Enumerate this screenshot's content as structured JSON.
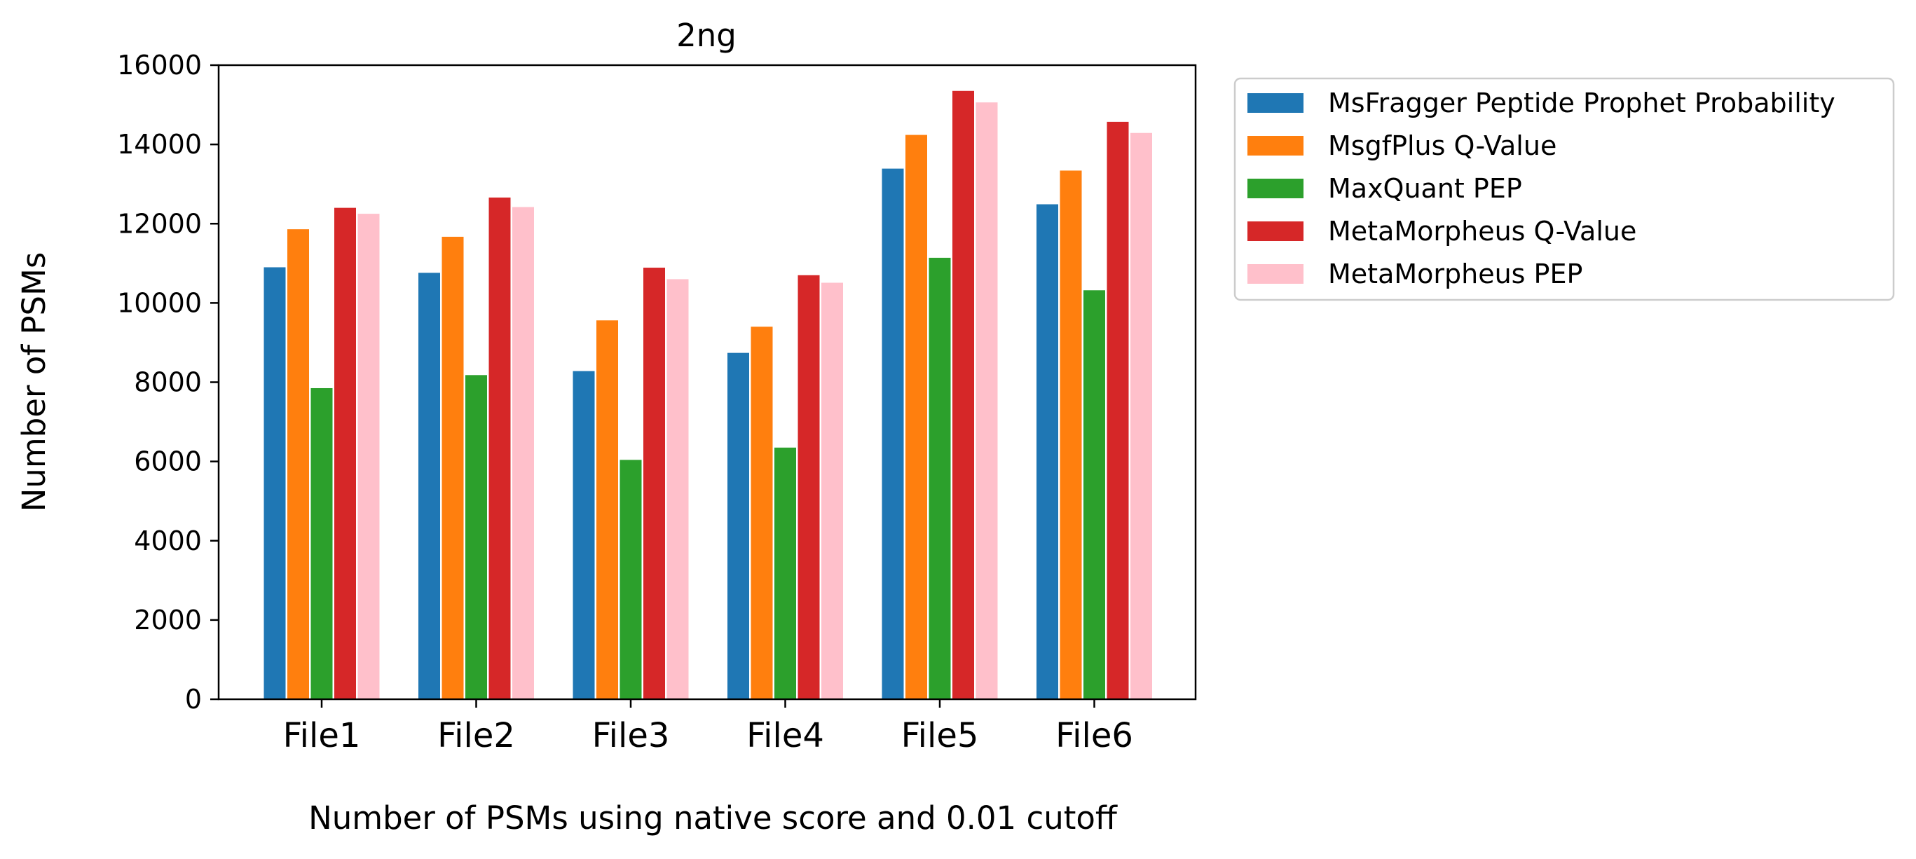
{
  "chart_data": {
    "type": "bar",
    "title": "2ng",
    "xlabel": "Number of PSMs using native score and 0.01 cutoff",
    "ylabel": "Number of PSMs",
    "ylim": [
      0,
      16000
    ],
    "yticks": [
      0,
      2000,
      4000,
      6000,
      8000,
      10000,
      12000,
      14000,
      16000
    ],
    "categories": [
      "File1",
      "File2",
      "File3",
      "File4",
      "File5",
      "File6"
    ],
    "series": [
      {
        "name": "MsFragger Peptide Prophet Probability",
        "color": "#1f77b4",
        "values": [
          10900,
          10760,
          8280,
          8740,
          13390,
          12490
        ]
      },
      {
        "name": "MsgfPlus Q-Value",
        "color": "#ff7f0e",
        "values": [
          11860,
          11670,
          9560,
          9400,
          14240,
          13340
        ]
      },
      {
        "name": "MaxQuant PEP",
        "color": "#2ca02c",
        "values": [
          7850,
          8180,
          6040,
          6350,
          11140,
          10320
        ]
      },
      {
        "name": "MetaMorpheus Q-Value",
        "color": "#d62728",
        "values": [
          12400,
          12660,
          10890,
          10700,
          15350,
          14570
        ]
      },
      {
        "name": "MetaMorpheus PEP",
        "color": "#ffc0cb",
        "values": [
          12250,
          12420,
          10600,
          10510,
          15060,
          14290
        ]
      }
    ],
    "grid": false,
    "legend_position": "outside-top-right"
  }
}
